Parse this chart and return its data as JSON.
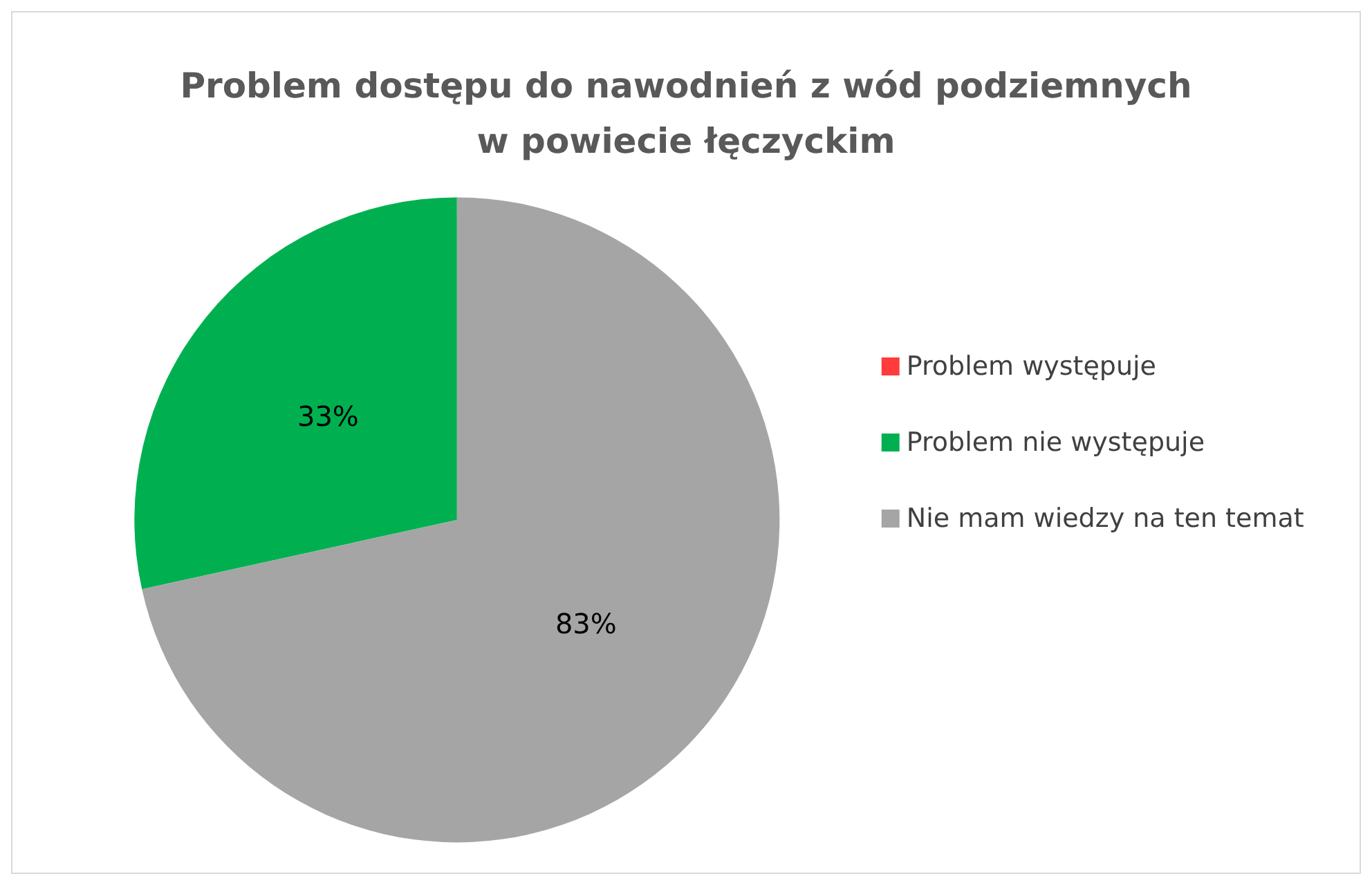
{
  "chart_data": {
    "type": "pie",
    "title": "Problem dostępu do nawodnień z wód podziemnych\nw powiecie łęczyckim",
    "categories": [
      "Problem występuje",
      "Problem nie występuje",
      "Nie mam wiedzy na ten temat"
    ],
    "values": [
      0,
      33,
      83
    ],
    "colors": [
      "#ff3b3b",
      "#00b050",
      "#a5a5a5"
    ],
    "value_labels": [
      null,
      "33%",
      "83%"
    ],
    "legend": "right"
  }
}
